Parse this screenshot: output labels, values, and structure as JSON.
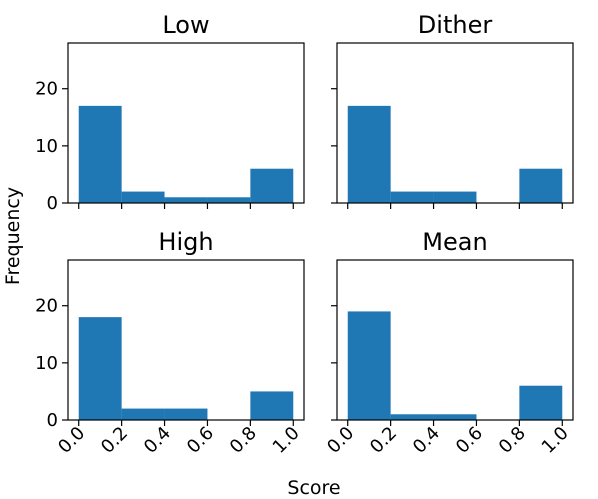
{
  "chart_data": {
    "type": "bar",
    "layout": "2x2 histogram grid, shared x and y axes",
    "xlabel": "Score",
    "ylabel": "Frequency",
    "bins": [
      0.0,
      0.2,
      0.4,
      0.6,
      0.8,
      1.0
    ],
    "xticks": [
      "0.0",
      "0.2",
      "0.4",
      "0.6",
      "0.8",
      "1.0"
    ],
    "xlim": [
      -0.05,
      1.05
    ],
    "yticks": [
      "0",
      "10",
      "20"
    ],
    "ylim": [
      0,
      28
    ],
    "bar_color": "#1f77b4",
    "grid": false,
    "panels": [
      {
        "title": "Low",
        "values": [
          17,
          2,
          1,
          1,
          6
        ]
      },
      {
        "title": "Dither",
        "values": [
          17,
          2,
          2,
          0,
          6
        ]
      },
      {
        "title": "High",
        "values": [
          18,
          2,
          2,
          0,
          5
        ]
      },
      {
        "title": "Mean",
        "values": [
          19,
          1,
          1,
          0,
          6
        ]
      }
    ]
  }
}
